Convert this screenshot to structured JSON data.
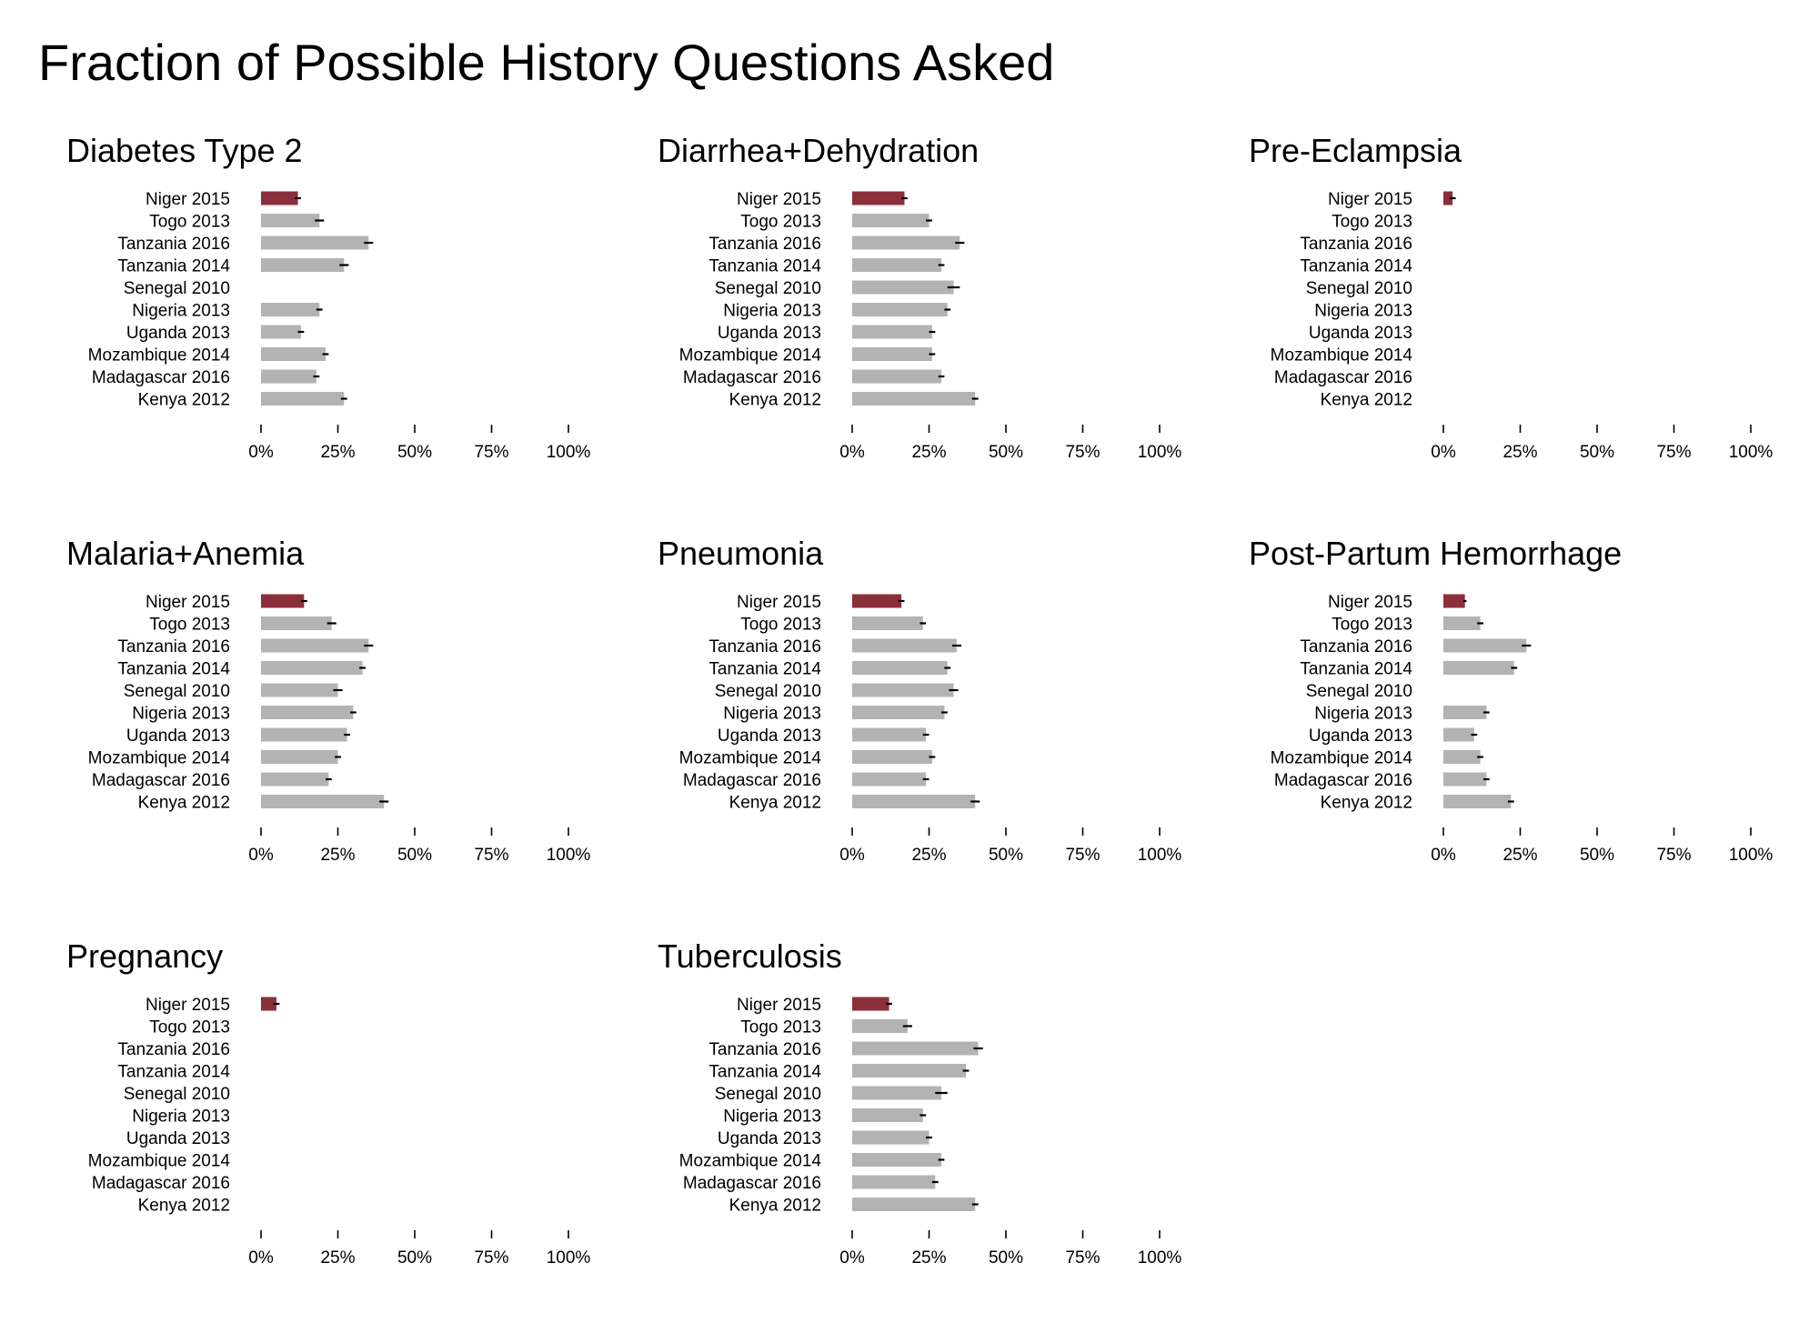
{
  "title": "Fraction of Possible History Questions Asked",
  "colors": {
    "highlight": "#8b2f3a",
    "bar": "#b3b3b3",
    "errorbar": "#000000",
    "text": "#000000"
  },
  "chart_data": [
    {
      "type": "bar",
      "title": "Diabetes Type 2",
      "categories": [
        "Niger 2015",
        "Togo 2013",
        "Tanzania 2016",
        "Tanzania 2014",
        "Senegal 2010",
        "Nigeria 2013",
        "Uganda 2013",
        "Mozambique 2014",
        "Madagascar 2016",
        "Kenya 2012"
      ],
      "values": [
        12,
        19,
        35,
        27,
        null,
        19,
        13,
        21,
        18,
        27
      ],
      "errors": [
        1,
        1.5,
        1.5,
        1.5,
        null,
        1,
        1,
        1,
        1,
        1
      ],
      "highlight_index": 0,
      "xlim": [
        0,
        100
      ],
      "ticks": [
        "0%",
        "25%",
        "50%",
        "75%",
        "100%"
      ]
    },
    {
      "type": "bar",
      "title": "Diarrhea+Dehydration",
      "categories": [
        "Niger 2015",
        "Togo 2013",
        "Tanzania 2016",
        "Tanzania 2014",
        "Senegal 2010",
        "Nigeria 2013",
        "Uganda 2013",
        "Mozambique 2014",
        "Madagascar 2016",
        "Kenya 2012"
      ],
      "values": [
        17,
        25,
        35,
        29,
        33,
        31,
        26,
        26,
        29,
        40
      ],
      "errors": [
        1,
        1,
        1.5,
        1,
        2,
        1,
        1,
        1,
        1,
        1
      ],
      "highlight_index": 0,
      "xlim": [
        0,
        100
      ],
      "ticks": [
        "0%",
        "25%",
        "50%",
        "75%",
        "100%"
      ]
    },
    {
      "type": "bar",
      "title": "Pre-Eclampsia",
      "categories": [
        "Niger 2015",
        "Togo 2013",
        "Tanzania 2016",
        "Tanzania 2014",
        "Senegal 2010",
        "Nigeria 2013",
        "Uganda 2013",
        "Mozambique 2014",
        "Madagascar 2016",
        "Kenya 2012"
      ],
      "values": [
        3,
        null,
        null,
        null,
        null,
        null,
        null,
        null,
        null,
        null
      ],
      "errors": [
        1,
        null,
        null,
        null,
        null,
        null,
        null,
        null,
        null,
        null
      ],
      "highlight_index": 0,
      "xlim": [
        0,
        100
      ],
      "ticks": [
        "0%",
        "25%",
        "50%",
        "75%",
        "100%"
      ]
    },
    {
      "type": "bar",
      "title": "Malaria+Anemia",
      "categories": [
        "Niger 2015",
        "Togo 2013",
        "Tanzania 2016",
        "Tanzania 2014",
        "Senegal 2010",
        "Nigeria 2013",
        "Uganda 2013",
        "Mozambique 2014",
        "Madagascar 2016",
        "Kenya 2012"
      ],
      "values": [
        14,
        23,
        35,
        33,
        25,
        30,
        28,
        25,
        22,
        40
      ],
      "errors": [
        1,
        1.5,
        1.5,
        1,
        1.5,
        1,
        1,
        1,
        1,
        1.5
      ],
      "highlight_index": 0,
      "xlim": [
        0,
        100
      ],
      "ticks": [
        "0%",
        "25%",
        "50%",
        "75%",
        "100%"
      ]
    },
    {
      "type": "bar",
      "title": "Pneumonia",
      "categories": [
        "Niger 2015",
        "Togo 2013",
        "Tanzania 2016",
        "Tanzania 2014",
        "Senegal 2010",
        "Nigeria 2013",
        "Uganda 2013",
        "Mozambique 2014",
        "Madagascar 2016",
        "Kenya 2012"
      ],
      "values": [
        16,
        23,
        34,
        31,
        33,
        30,
        24,
        26,
        24,
        40
      ],
      "errors": [
        1,
        1,
        1.5,
        1,
        1.5,
        1,
        1,
        1,
        1,
        1.5
      ],
      "highlight_index": 0,
      "xlim": [
        0,
        100
      ],
      "ticks": [
        "0%",
        "25%",
        "50%",
        "75%",
        "100%"
      ]
    },
    {
      "type": "bar",
      "title": "Post-Partum Hemorrhage",
      "categories": [
        "Niger 2015",
        "Togo 2013",
        "Tanzania 2016",
        "Tanzania 2014",
        "Senegal 2010",
        "Nigeria 2013",
        "Uganda 2013",
        "Mozambique 2014",
        "Madagascar 2016",
        "Kenya 2012"
      ],
      "values": [
        7,
        12,
        27,
        23,
        null,
        14,
        10,
        12,
        14,
        22
      ],
      "errors": [
        0.5,
        1,
        1.5,
        1,
        null,
        1,
        1,
        1,
        1,
        1
      ],
      "highlight_index": 0,
      "xlim": [
        0,
        100
      ],
      "ticks": [
        "0%",
        "25%",
        "50%",
        "75%",
        "100%"
      ]
    },
    {
      "type": "bar",
      "title": "Pregnancy",
      "categories": [
        "Niger 2015",
        "Togo 2013",
        "Tanzania 2016",
        "Tanzania 2014",
        "Senegal 2010",
        "Nigeria 2013",
        "Uganda 2013",
        "Mozambique 2014",
        "Madagascar 2016",
        "Kenya 2012"
      ],
      "values": [
        5,
        null,
        null,
        null,
        null,
        null,
        null,
        null,
        null,
        null
      ],
      "errors": [
        1,
        null,
        null,
        null,
        null,
        null,
        null,
        null,
        null,
        null
      ],
      "highlight_index": 0,
      "xlim": [
        0,
        100
      ],
      "ticks": [
        "0%",
        "25%",
        "50%",
        "75%",
        "100%"
      ]
    },
    {
      "type": "bar",
      "title": "Tuberculosis",
      "categories": [
        "Niger 2015",
        "Togo 2013",
        "Tanzania 2016",
        "Tanzania 2014",
        "Senegal 2010",
        "Nigeria 2013",
        "Uganda 2013",
        "Mozambique 2014",
        "Madagascar 2016",
        "Kenya 2012"
      ],
      "values": [
        12,
        18,
        41,
        37,
        29,
        23,
        25,
        29,
        27,
        40
      ],
      "errors": [
        1,
        1.5,
        1.5,
        1,
        2,
        1,
        1,
        1,
        1,
        1
      ],
      "highlight_index": 0,
      "xlim": [
        0,
        100
      ],
      "ticks": [
        "0%",
        "25%",
        "50%",
        "75%",
        "100%"
      ]
    }
  ]
}
